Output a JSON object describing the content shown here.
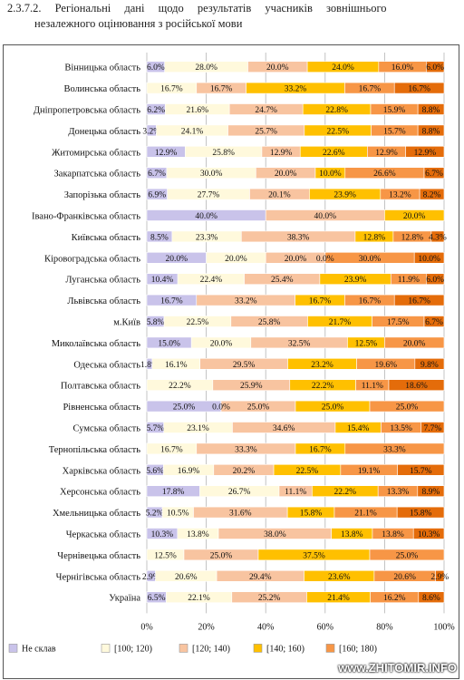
{
  "heading": {
    "line1": "2.3.7.2. Регіональні дані щодо результатів учасників зовнішнього",
    "line2": "незалежного оцінювання з російської мови"
  },
  "watermark": "www.ZHITOMIR.INFO",
  "colors": [
    "#c9c3ea",
    "#fff9dc",
    "#f8c4a0",
    "#ffc000",
    "#f79646",
    "#e46c0a"
  ],
  "chart_data": {
    "type": "bar",
    "orientation": "horizontal",
    "stacked": true,
    "percent_stacked": true,
    "xlim": [
      0,
      100
    ],
    "x_ticks": [
      "0%",
      "20%",
      "40%",
      "60%",
      "80%",
      "100%"
    ],
    "grid": true,
    "legend_position": "bottom",
    "series": [
      {
        "name": "Не склав"
      },
      {
        "name": "[100; 120)"
      },
      {
        "name": "[120; 140)"
      },
      {
        "name": "[140; 160)"
      },
      {
        "name": "[160; 180)"
      },
      {
        "name": ""
      }
    ],
    "categories": [
      {
        "label": "Вінницька область",
        "values": [
          6.0,
          28.0,
          20.0,
          24.0,
          16.0,
          6.0
        ]
      },
      {
        "label": "Волинська область",
        "values": [
          0,
          16.7,
          16.7,
          33.2,
          16.7,
          16.7
        ]
      },
      {
        "label": "Дніпропетровська область",
        "values": [
          6.2,
          21.6,
          24.7,
          22.8,
          15.9,
          8.8
        ]
      },
      {
        "label": "Донецька область",
        "values": [
          3.2,
          24.1,
          25.7,
          22.5,
          15.7,
          8.8
        ]
      },
      {
        "label": "Житомирська область",
        "values": [
          12.9,
          25.8,
          12.9,
          22.6,
          12.9,
          12.9
        ]
      },
      {
        "label": "Закарпатська область",
        "values": [
          6.7,
          30.0,
          20.0,
          10.0,
          26.6,
          6.7
        ]
      },
      {
        "label": "Запорізька область",
        "values": [
          6.9,
          27.7,
          20.1,
          23.9,
          13.2,
          8.2
        ]
      },
      {
        "label": "Івано-Франківська область",
        "values": [
          40.0,
          0,
          40.0,
          20.0,
          0,
          0
        ]
      },
      {
        "label": "Київська область",
        "values": [
          8.5,
          23.3,
          38.3,
          12.8,
          12.8,
          4.3
        ]
      },
      {
        "label": "Кіровоградська область",
        "values": [
          20.0,
          20.0,
          20.0,
          0.0,
          30.0,
          10.0
        ]
      },
      {
        "label": "Луганська область",
        "values": [
          10.4,
          22.4,
          25.4,
          23.9,
          11.9,
          6.0
        ]
      },
      {
        "label": "Львівська область",
        "values": [
          16.7,
          0,
          33.2,
          16.7,
          16.7,
          16.7
        ]
      },
      {
        "label": "м.Київ",
        "values": [
          5.8,
          22.5,
          25.8,
          21.7,
          17.5,
          6.7
        ]
      },
      {
        "label": "Миколаївська область",
        "values": [
          15.0,
          20.0,
          32.5,
          12.5,
          20.0,
          0
        ]
      },
      {
        "label": "Одеська область",
        "values": [
          1.8,
          16.1,
          29.5,
          23.2,
          19.6,
          9.8
        ]
      },
      {
        "label": "Полтавська область",
        "values": [
          0,
          22.2,
          25.9,
          22.2,
          11.1,
          18.6
        ]
      },
      {
        "label": "Рівненська область",
        "values": [
          25.0,
          0.0,
          25.0,
          25.0,
          25.0,
          0
        ]
      },
      {
        "label": "Сумська область",
        "values": [
          5.7,
          23.1,
          34.6,
          15.4,
          13.5,
          7.7
        ]
      },
      {
        "label": "Тернопільська область",
        "values": [
          0,
          16.7,
          33.3,
          16.7,
          33.3,
          0
        ]
      },
      {
        "label": "Харківська область",
        "values": [
          5.6,
          16.9,
          20.2,
          22.5,
          19.1,
          15.7
        ]
      },
      {
        "label": "Херсонська область",
        "values": [
          17.8,
          26.7,
          11.1,
          22.2,
          13.3,
          8.9
        ]
      },
      {
        "label": "Хмельницька область",
        "values": [
          5.2,
          10.5,
          31.6,
          15.8,
          21.1,
          15.8
        ]
      },
      {
        "label": "Черкаська область",
        "values": [
          10.3,
          13.8,
          38.0,
          13.8,
          13.8,
          10.3
        ]
      },
      {
        "label": "Чернівецька область",
        "values": [
          0,
          12.5,
          25.0,
          37.5,
          25.0,
          0
        ]
      },
      {
        "label": "Чернігівська область",
        "values": [
          2.9,
          20.6,
          29.4,
          23.6,
          20.6,
          2.9
        ]
      },
      {
        "label": "Україна",
        "values": [
          6.5,
          22.1,
          25.2,
          21.4,
          16.2,
          8.6
        ]
      }
    ]
  }
}
